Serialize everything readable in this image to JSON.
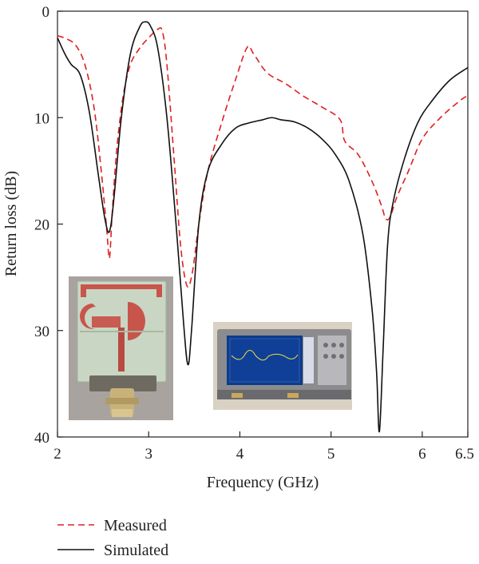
{
  "chart_data": {
    "type": "line",
    "title": "",
    "xlabel": "Frequency (GHz)",
    "ylabel": "Return loss (dB)",
    "xlim": [
      2,
      6.5
    ],
    "ylim": [
      0,
      40
    ],
    "y_inverted": true,
    "xticks": [
      2,
      3,
      4,
      5,
      6,
      6.5
    ],
    "xtick_labels": [
      "2",
      "3",
      "4",
      "5",
      "6",
      "6.5"
    ],
    "yticks": [
      0,
      10,
      20,
      30,
      40
    ],
    "ytick_labels": [
      "0",
      "10",
      "20",
      "30",
      "40"
    ],
    "grid": false,
    "legend_position": "bottom-left",
    "series": [
      {
        "name": "Measured",
        "style": "dashed",
        "color": "#e02020",
        "x": [
          2.0,
          2.1,
          2.2,
          2.3,
          2.4,
          2.48,
          2.54,
          2.57,
          2.6,
          2.65,
          2.72,
          2.8,
          2.9,
          3.0,
          3.1,
          3.15,
          3.2,
          3.28,
          3.35,
          3.42,
          3.48,
          3.55,
          3.65,
          3.8,
          3.95,
          4.08,
          4.15,
          4.3,
          4.5,
          4.7,
          4.9,
          5.1,
          5.15,
          5.3,
          5.45,
          5.55,
          5.6,
          5.65,
          5.72,
          5.85,
          6.0,
          6.2,
          6.4,
          6.5
        ],
        "y": [
          2.3,
          2.6,
          3.2,
          5.0,
          9.0,
          15.0,
          20.5,
          23.2,
          19.0,
          13.0,
          8.0,
          5.0,
          3.5,
          2.5,
          1.7,
          1.9,
          5.0,
          14.0,
          22.0,
          25.8,
          24.5,
          20.0,
          15.0,
          10.5,
          6.5,
          3.4,
          4.0,
          5.8,
          6.8,
          8.0,
          9.0,
          10.2,
          12.2,
          13.5,
          16.0,
          18.2,
          19.5,
          19.3,
          17.5,
          15.0,
          12.0,
          10.0,
          8.5,
          7.9
        ]
      },
      {
        "name": "Simulated",
        "style": "solid",
        "color": "#111111",
        "x": [
          2.0,
          2.08,
          2.15,
          2.25,
          2.35,
          2.45,
          2.52,
          2.57,
          2.62,
          2.7,
          2.8,
          2.9,
          2.96,
          3.02,
          3.1,
          3.2,
          3.3,
          3.38,
          3.43,
          3.47,
          3.55,
          3.65,
          3.8,
          3.95,
          4.1,
          4.25,
          4.35,
          4.45,
          4.6,
          4.75,
          4.9,
          5.05,
          5.2,
          5.35,
          5.45,
          5.5,
          5.53,
          5.57,
          5.62,
          5.68,
          5.8,
          5.95,
          6.1,
          6.3,
          6.5
        ],
        "y": [
          2.5,
          4.0,
          5.0,
          6.0,
          9.5,
          15.5,
          19.5,
          20.7,
          17.5,
          10.0,
          4.0,
          1.5,
          1.0,
          1.4,
          3.5,
          10.0,
          20.0,
          29.0,
          33.2,
          30.0,
          20.0,
          15.0,
          12.5,
          11.0,
          10.5,
          10.2,
          10.0,
          10.2,
          10.4,
          11.0,
          12.0,
          13.5,
          16.0,
          21.0,
          28.0,
          34.0,
          39.5,
          32.0,
          22.0,
          18.0,
          14.0,
          10.5,
          8.5,
          6.5,
          5.3
        ]
      }
    ]
  },
  "photos": {
    "antenna": "antenna-prototype-photo",
    "analyzer": "network-analyzer-photo"
  }
}
